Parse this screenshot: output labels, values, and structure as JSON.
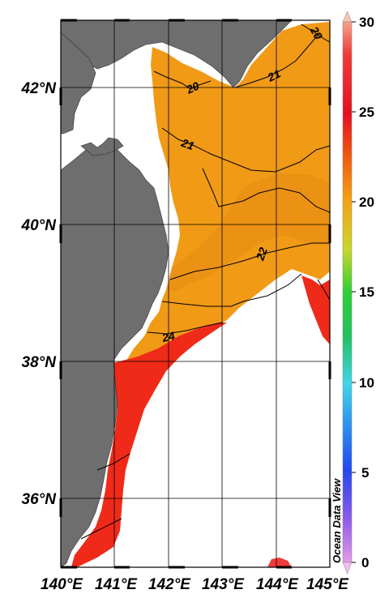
{
  "map": {
    "watermark": "Ocean Data View",
    "lat_labels": [
      "42°N",
      "40°N",
      "38°N",
      "36°N"
    ],
    "lon_labels": [
      "140°E",
      "141°E",
      "142°E",
      "143°E",
      "144°E",
      "145°E"
    ],
    "contour_labels": [
      "20",
      "20",
      "21",
      "21",
      "22",
      "24"
    ],
    "colorbar": {
      "ticks": [
        "30",
        "25",
        "20",
        "15",
        "10",
        "5",
        "0"
      ],
      "colors": [
        "#f7a28c",
        "#e0102a",
        "#f6a214",
        "#2fd035",
        "#3fd6e8",
        "#2347f0",
        "#d77ce6"
      ]
    },
    "colors": {
      "land": "#6e6e6e",
      "warm_water": "#f09a16",
      "hot_water": "#ef2a18",
      "ocean_no_data": "#ffffff",
      "grid": "#000000"
    }
  }
}
